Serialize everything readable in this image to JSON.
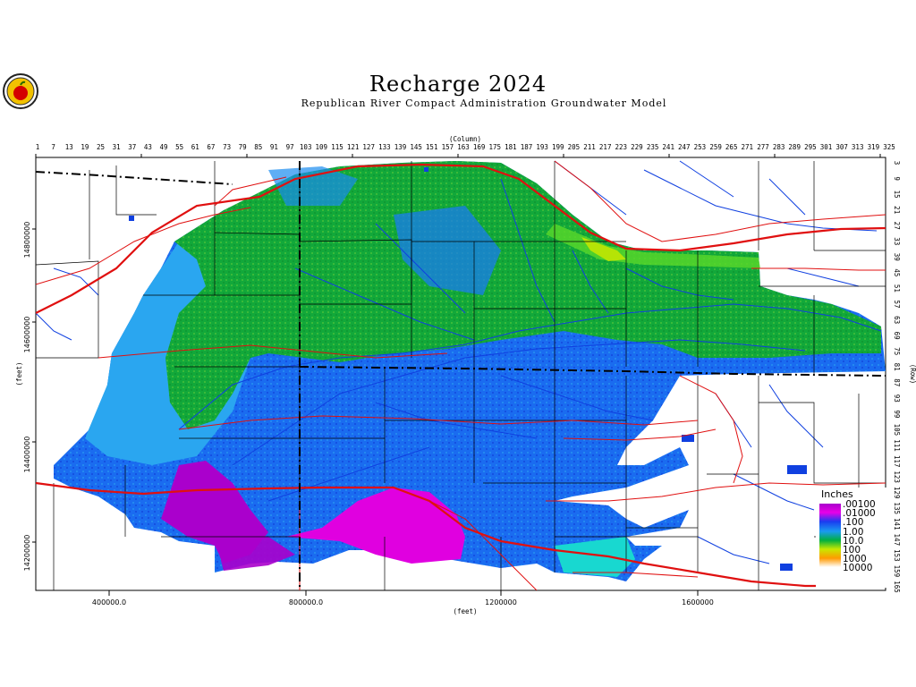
{
  "title": "Recharge 2024",
  "subtitle": "Republican River Compact Administration Groundwater Model",
  "axes": {
    "column_label": "(Column)",
    "row_label": "(Row)",
    "x_feet_label": "(feet)",
    "y_feet_label": "(feet)",
    "column_ticks": [
      "1",
      "7",
      "13",
      "19",
      "25",
      "31",
      "37",
      "43",
      "49",
      "55",
      "61",
      "67",
      "73",
      "79",
      "85",
      "91",
      "97",
      "103",
      "109",
      "115",
      "121",
      "127",
      "133",
      "139",
      "145",
      "151",
      "157",
      "163",
      "169",
      "175",
      "181",
      "187",
      "193",
      "199",
      "205",
      "211",
      "217",
      "223",
      "229",
      "235",
      "241",
      "247",
      "253",
      "259",
      "265",
      "271",
      "277",
      "283",
      "289",
      "295",
      "301",
      "307",
      "313",
      "319",
      "325"
    ],
    "row_ticks": [
      "3",
      "9",
      "15",
      "21",
      "27",
      "33",
      "39",
      "45",
      "51",
      "57",
      "63",
      "69",
      "75",
      "81",
      "87",
      "93",
      "99",
      "105",
      "111",
      "117",
      "123",
      "129",
      "135",
      "141",
      "147",
      "153",
      "159",
      "165"
    ],
    "x_feet_ticks": [
      "400000.0",
      "800000.0",
      "1200000",
      "1600000"
    ],
    "y_feet_ticks": [
      "14800000",
      "14600000",
      "14400000",
      "14200000"
    ]
  },
  "legend": {
    "title": "Inches",
    "entries": [
      {
        "label": ".00100",
        "color": "#aa00cc"
      },
      {
        "label": ".01000",
        "color": "#e800e8"
      },
      {
        "label": ".100",
        "color": "#1a3cf0"
      },
      {
        "label": "1.00",
        "color": "#1a9af0"
      },
      {
        "label": "10.0",
        "color": "#00b040"
      },
      {
        "label": "100",
        "color": "#c8e800"
      },
      {
        "label": "1000",
        "color": "#ff9a00"
      },
      {
        "label": "10000",
        "color": "#ffffff"
      }
    ]
  }
}
